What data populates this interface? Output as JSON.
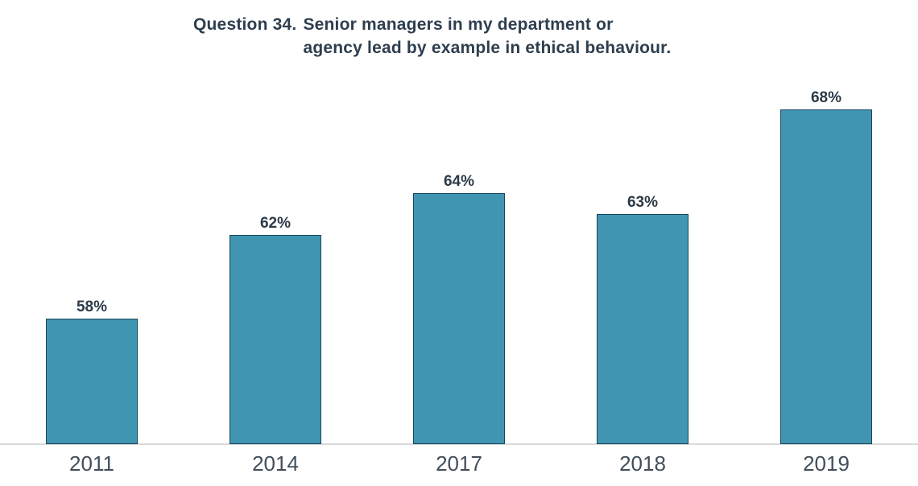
{
  "title": {
    "prefix": "Question 34.",
    "line1": "Senior managers in my department or",
    "line2": "agency lead by example in ethical behaviour."
  },
  "chart_data": {
    "type": "bar",
    "title": "Question 34. Senior managers in my department or agency lead by example in ethical behaviour.",
    "categories": [
      "2011",
      "2014",
      "2017",
      "2018",
      "2019"
    ],
    "values": [
      58,
      62,
      64,
      63,
      68
    ],
    "value_labels": [
      "58%",
      "62%",
      "64%",
      "63%",
      "68%"
    ],
    "xlabel": "",
    "ylabel": "",
    "ylim": [
      52,
      70
    ],
    "grid": false,
    "legend": null,
    "colors": {
      "bar_fill": "#4096b2",
      "bar_border": "#17465a",
      "title_text": "#2e3e4e",
      "value_label_text": "#2c3a47",
      "axis_label_text": "#414e5a",
      "axis_line": "#d9d9d9",
      "background": "#ffffff"
    }
  }
}
